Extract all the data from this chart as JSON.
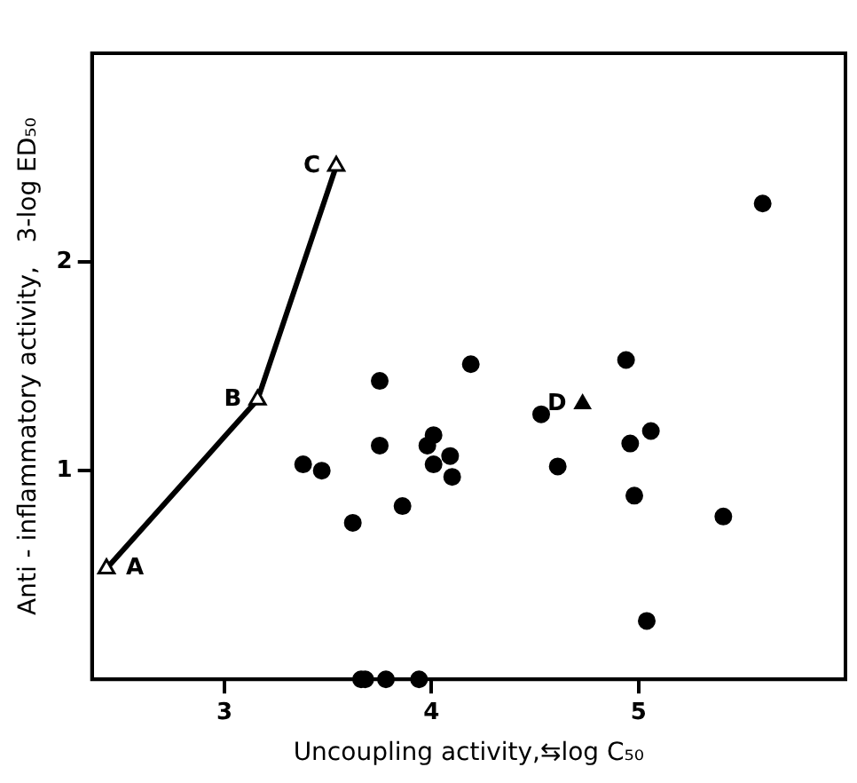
{
  "chart_data": {
    "type": "scatter",
    "xlabel": "Uncoupling activity,⇆log C₅₀",
    "ylabel": "Anti - inflammatory activity,   3-log ED₅₀",
    "xlim": [
      2.36,
      6.0
    ],
    "ylim": [
      0,
      3
    ],
    "xticks": [
      3,
      4,
      5
    ],
    "yticks": [
      1,
      2
    ],
    "grid": false,
    "legend": false,
    "series": [
      {
        "type": "line",
        "color": "#000000",
        "marker": "triangle",
        "x": [
          2.43,
          3.16,
          3.54
        ],
        "values": [
          0.53,
          1.34,
          2.46
        ]
      },
      {
        "type": "scatter",
        "color": "#000000",
        "marker": "circle",
        "x": [
          5.6,
          3.38,
          3.47,
          3.62,
          3.75,
          3.75,
          3.86,
          3.98,
          4.01,
          4.01,
          4.09,
          4.1,
          4.19,
          4.53,
          4.61,
          4.94,
          4.96,
          5.06,
          4.98,
          5.41,
          5.04,
          3.66,
          3.68,
          3.78,
          3.94
        ],
        "values": [
          2.28,
          1.03,
          1.0,
          0.75,
          1.43,
          1.12,
          0.83,
          1.12,
          1.17,
          1.03,
          1.07,
          0.97,
          1.51,
          1.27,
          1.02,
          1.53,
          1.13,
          1.19,
          0.88,
          0.78,
          0.28,
          0,
          0,
          0,
          0
        ]
      },
      {
        "type": "scatter",
        "color": "#000000",
        "marker": "triangle",
        "x": [
          4.73
        ],
        "values": [
          1.32
        ]
      }
    ],
    "annotations": [
      {
        "text": "A",
        "x": 2.43,
        "y": 0.53
      },
      {
        "text": "B",
        "x": 3.16,
        "y": 1.34
      },
      {
        "text": "C",
        "x": 3.54,
        "y": 2.46
      },
      {
        "text": "D",
        "x": 4.73,
        "y": 1.32
      }
    ]
  }
}
